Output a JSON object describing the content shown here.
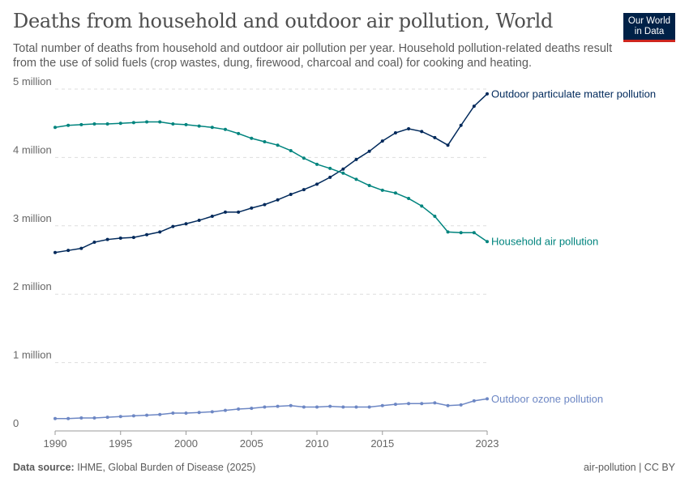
{
  "header": {
    "title": "Deaths from household and outdoor air pollution, World",
    "subtitle": "Total number of deaths from household and outdoor air pollution per year. Household pollution-related deaths result from the use of solid fuels (crop wastes, dung, firewood, charcoal and coal) for cooking and heating.",
    "logo_text": "Our World in Data"
  },
  "footer": {
    "source_label": "Data source:",
    "source": "IHME, Global Burden of Disease (2025)",
    "license": "air-pollution | CC BY"
  },
  "chart_data": {
    "type": "line",
    "title": "Deaths from household and outdoor air pollution, World",
    "xlim": [
      1990,
      2023
    ],
    "ylim": [
      0,
      5000000
    ],
    "x_ticks": [
      "1990",
      "1995",
      "2000",
      "2005",
      "2010",
      "2015",
      "2023"
    ],
    "y_ticks": [
      {
        "value": 0,
        "label": "0"
      },
      {
        "value": 1000000,
        "label": "1 million"
      },
      {
        "value": 2000000,
        "label": "2 million"
      },
      {
        "value": 3000000,
        "label": "3 million"
      },
      {
        "value": 4000000,
        "label": "4 million"
      },
      {
        "value": 5000000,
        "label": "5 million"
      }
    ],
    "grid": "horizontal dashed",
    "legend": "inline labels at line ends (right)",
    "x": [
      1990,
      1991,
      1992,
      1993,
      1994,
      1995,
      1996,
      1997,
      1998,
      1999,
      2000,
      2001,
      2002,
      2003,
      2004,
      2005,
      2006,
      2007,
      2008,
      2009,
      2010,
      2011,
      2012,
      2013,
      2014,
      2015,
      2016,
      2017,
      2018,
      2019,
      2020,
      2021,
      2022,
      2023
    ],
    "series": [
      {
        "name": "Outdoor particulate matter pollution",
        "color": "#00295b",
        "values": [
          2.61,
          2.64,
          2.67,
          2.76,
          2.8,
          2.82,
          2.83,
          2.87,
          2.91,
          2.99,
          3.03,
          3.08,
          3.14,
          3.2,
          3.2,
          3.26,
          3.31,
          3.38,
          3.46,
          3.53,
          3.61,
          3.71,
          3.83,
          3.97,
          4.09,
          4.24,
          4.36,
          4.42,
          4.38,
          4.29,
          4.18,
          4.47,
          4.75,
          4.93
        ],
        "unit_multiplier": 1000000
      },
      {
        "name": "Household air pollution",
        "color": "#00847e",
        "values": [
          4.44,
          4.47,
          4.48,
          4.49,
          4.49,
          4.5,
          4.51,
          4.52,
          4.52,
          4.49,
          4.48,
          4.46,
          4.44,
          4.41,
          4.35,
          4.28,
          4.23,
          4.18,
          4.1,
          3.99,
          3.9,
          3.84,
          3.77,
          3.68,
          3.59,
          3.52,
          3.48,
          3.4,
          3.29,
          3.14,
          2.91,
          2.9,
          2.9,
          2.77
        ],
        "unit_multiplier": 1000000
      },
      {
        "name": "Outdoor ozone pollution",
        "color": "#6d87c4",
        "values": [
          0.18,
          0.18,
          0.19,
          0.19,
          0.2,
          0.21,
          0.22,
          0.23,
          0.24,
          0.26,
          0.26,
          0.27,
          0.28,
          0.3,
          0.32,
          0.33,
          0.35,
          0.36,
          0.37,
          0.35,
          0.35,
          0.36,
          0.35,
          0.35,
          0.35,
          0.37,
          0.39,
          0.4,
          0.4,
          0.41,
          0.37,
          0.38,
          0.44,
          0.47
        ],
        "unit_multiplier": 1000000
      }
    ]
  }
}
